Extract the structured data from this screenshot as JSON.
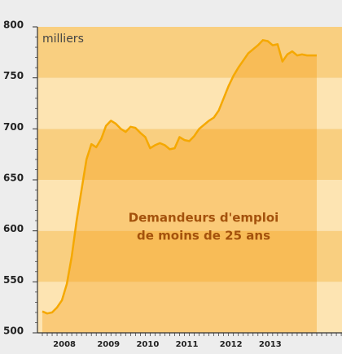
{
  "chart_data": {
    "type": "area",
    "y_unit_label": "milliers",
    "annotation": [
      "Demandeurs d'emploi",
      "de moins de 25 ans"
    ],
    "categories": [
      null,
      null,
      null,
      null,
      "2008",
      null,
      null,
      null,
      null,
      null,
      null,
      null,
      null,
      "2009",
      null,
      null,
      null,
      null,
      null,
      null,
      null,
      "2010",
      null,
      null,
      null,
      null,
      null,
      null,
      null,
      "2011",
      null,
      null,
      null,
      null,
      null,
      null,
      null,
      null,
      "2012",
      null,
      null,
      null,
      null,
      null,
      null,
      null,
      "2013",
      null,
      null,
      null,
      null,
      null,
      null,
      null,
      null,
      null,
      null
    ],
    "values": [
      521,
      519,
      520,
      525,
      532,
      548,
      575,
      610,
      640,
      670,
      685,
      682,
      690,
      703,
      708,
      705,
      700,
      697,
      702,
      701,
      696,
      692,
      681,
      684,
      686,
      684,
      680,
      681,
      692,
      689,
      688,
      693,
      700,
      704,
      708,
      711,
      718,
      730,
      742,
      752,
      760,
      767,
      774,
      778,
      782,
      787,
      786,
      782,
      783,
      766,
      773,
      776,
      772,
      773,
      772,
      772,
      772
    ],
    "color": "#f5a800",
    "ylim": [
      500,
      800
    ],
    "yticks": [
      500,
      550,
      600,
      650,
      700,
      750,
      800
    ],
    "grid_bands": true
  }
}
